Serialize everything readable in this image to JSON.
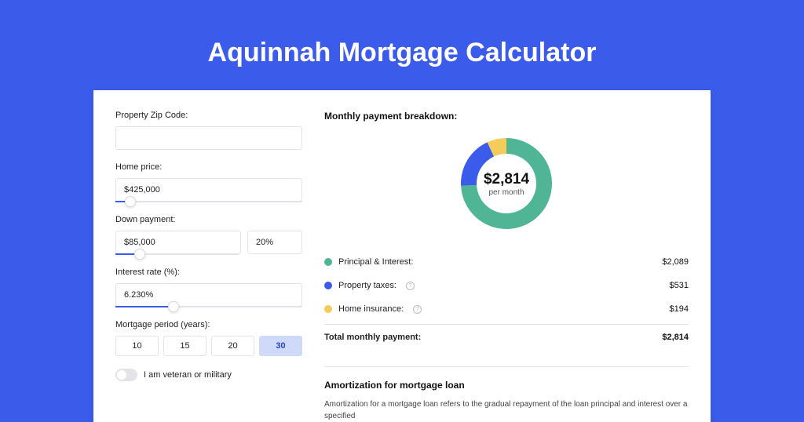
{
  "title": "Aquinnah Mortgage Calculator",
  "colors": {
    "page_bg": "#3b5ceb",
    "card_bg": "#ffffff",
    "accent": "#3b5ceb",
    "border": "#e4e4e8",
    "period_active_bg": "#cfd9fa",
    "text": "#222222"
  },
  "form": {
    "zip": {
      "label": "Property Zip Code:",
      "value": ""
    },
    "home_price": {
      "label": "Home price:",
      "value": "$425,000",
      "slider_pct": 8
    },
    "down_payment": {
      "label": "Down payment:",
      "value": "$85,000",
      "pct_value": "20%",
      "slider_pct": 20
    },
    "interest_rate": {
      "label": "Interest rate (%):",
      "value": "6.230%",
      "slider_pct": 31
    },
    "period": {
      "label": "Mortgage period (years):",
      "options": [
        "10",
        "15",
        "20",
        "30"
      ],
      "active": "30"
    },
    "veteran": {
      "label": "I am veteran or military",
      "checked": false
    }
  },
  "breakdown": {
    "title": "Monthly payment breakdown:",
    "donut": {
      "center_amount": "$2,814",
      "center_sub": "per month",
      "slices": [
        {
          "name": "principal_interest",
          "color": "#4fb594",
          "pct": 74.2
        },
        {
          "name": "property_taxes",
          "color": "#3b5ceb",
          "pct": 18.9
        },
        {
          "name": "home_insurance",
          "color": "#f3cc5a",
          "pct": 6.9
        }
      ],
      "outer_radius": 58,
      "inner_radius": 38
    },
    "items": [
      {
        "label": "Principal & Interest:",
        "value": "$2,089",
        "color": "#4fb594",
        "info": false
      },
      {
        "label": "Property taxes:",
        "value": "$531",
        "color": "#3b5ceb",
        "info": true
      },
      {
        "label": "Home insurance:",
        "value": "$194",
        "color": "#f3cc5a",
        "info": true
      }
    ],
    "total": {
      "label": "Total monthly payment:",
      "value": "$2,814"
    }
  },
  "amortization": {
    "title": "Amortization for mortgage loan",
    "text": "Amortization for a mortgage loan refers to the gradual repayment of the loan principal and interest over a specified"
  }
}
